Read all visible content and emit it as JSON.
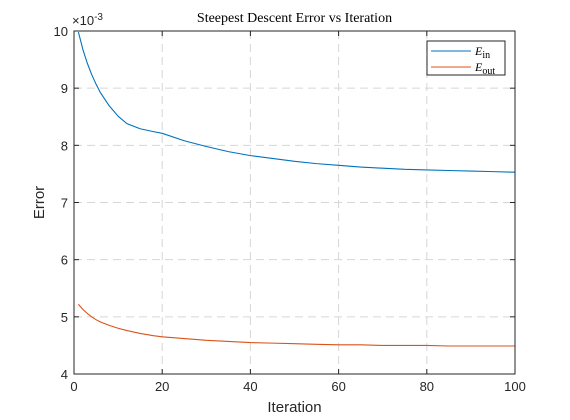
{
  "chart_data": {
    "type": "line",
    "title": "Steepest Descent Error vs Iteration",
    "xlabel": "Iteration",
    "ylabel": "Error",
    "y_exponent_label": "×10",
    "y_exponent_power": "-3",
    "xlim": [
      0,
      100
    ],
    "ylim": [
      0.004,
      0.01
    ],
    "x_ticks": [
      0,
      20,
      40,
      60,
      80,
      100
    ],
    "x_tick_labels": [
      "0",
      "20",
      "40",
      "60",
      "80",
      "100"
    ],
    "y_ticks": [
      0.004,
      0.005,
      0.006,
      0.007,
      0.008,
      0.009,
      0.01
    ],
    "y_tick_labels": [
      "4",
      "5",
      "6",
      "7",
      "8",
      "9",
      "10"
    ],
    "grid": true,
    "legend_position": "top-right",
    "series": [
      {
        "name": "E_in",
        "legend_main": "E",
        "legend_sub": "in",
        "color": "#0072BD",
        "x": [
          1,
          2,
          3,
          4,
          5,
          6,
          8,
          10,
          12,
          15,
          18,
          20,
          25,
          30,
          35,
          40,
          45,
          50,
          55,
          60,
          65,
          70,
          75,
          80,
          85,
          90,
          95,
          100
        ],
        "y": [
          0.00998,
          0.00968,
          0.00944,
          0.00924,
          0.00907,
          0.00892,
          0.00869,
          0.00851,
          0.00838,
          0.00829,
          0.00824,
          0.00821,
          0.00808,
          0.00798,
          0.00789,
          0.00782,
          0.00777,
          0.00772,
          0.00768,
          0.00765,
          0.00762,
          0.0076,
          0.00758,
          0.00757,
          0.00756,
          0.00755,
          0.00754,
          0.00753
        ]
      },
      {
        "name": "E_out",
        "legend_main": "E",
        "legend_sub": "out",
        "color": "#D95319",
        "x": [
          1,
          2,
          3,
          4,
          5,
          6,
          8,
          10,
          12,
          15,
          18,
          20,
          25,
          30,
          35,
          40,
          45,
          50,
          55,
          60,
          65,
          70,
          75,
          80,
          85,
          90,
          95,
          100
        ],
        "y": [
          0.00522,
          0.00513,
          0.00506,
          0.005,
          0.00495,
          0.00491,
          0.00485,
          0.0048,
          0.00476,
          0.00471,
          0.00467,
          0.00465,
          0.00462,
          0.00459,
          0.00457,
          0.00455,
          0.00454,
          0.00453,
          0.00452,
          0.00451,
          0.00451,
          0.0045,
          0.0045,
          0.0045,
          0.00449,
          0.00449,
          0.00449,
          0.00449
        ]
      }
    ]
  }
}
